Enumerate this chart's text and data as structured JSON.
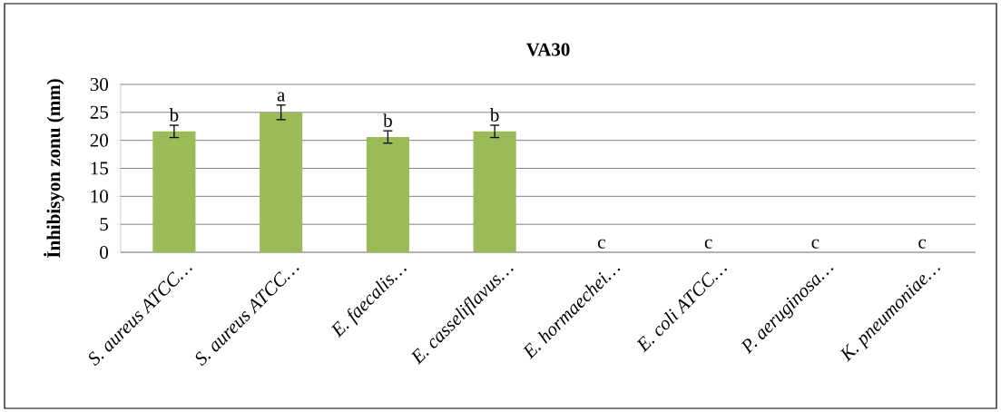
{
  "chart_data": {
    "type": "bar",
    "title": "VA30",
    "ylabel": "İnhibisyon zonu (mm)",
    "categories": [
      "S. aureus ATCC…",
      "S. aureus ATCC…",
      "E. faecalis…",
      "E. casseliflavus…",
      "E. hormaechei…",
      "E. coli ATCC…",
      "P. aeruginosa…",
      "K. pneumoniae…"
    ],
    "values": [
      21.6,
      25.0,
      20.6,
      21.6,
      0,
      0,
      0,
      0
    ],
    "errors": [
      1.1,
      1.3,
      1.1,
      1.1,
      null,
      null,
      null,
      null
    ],
    "value_labels": [
      "b",
      "a",
      "b",
      "b",
      "c",
      "c",
      "c",
      "c"
    ],
    "color": "#9bbb59",
    "ylim": [
      0,
      30
    ],
    "yticks": [
      0,
      5,
      10,
      15,
      20,
      25,
      30
    ],
    "grid": "y"
  }
}
